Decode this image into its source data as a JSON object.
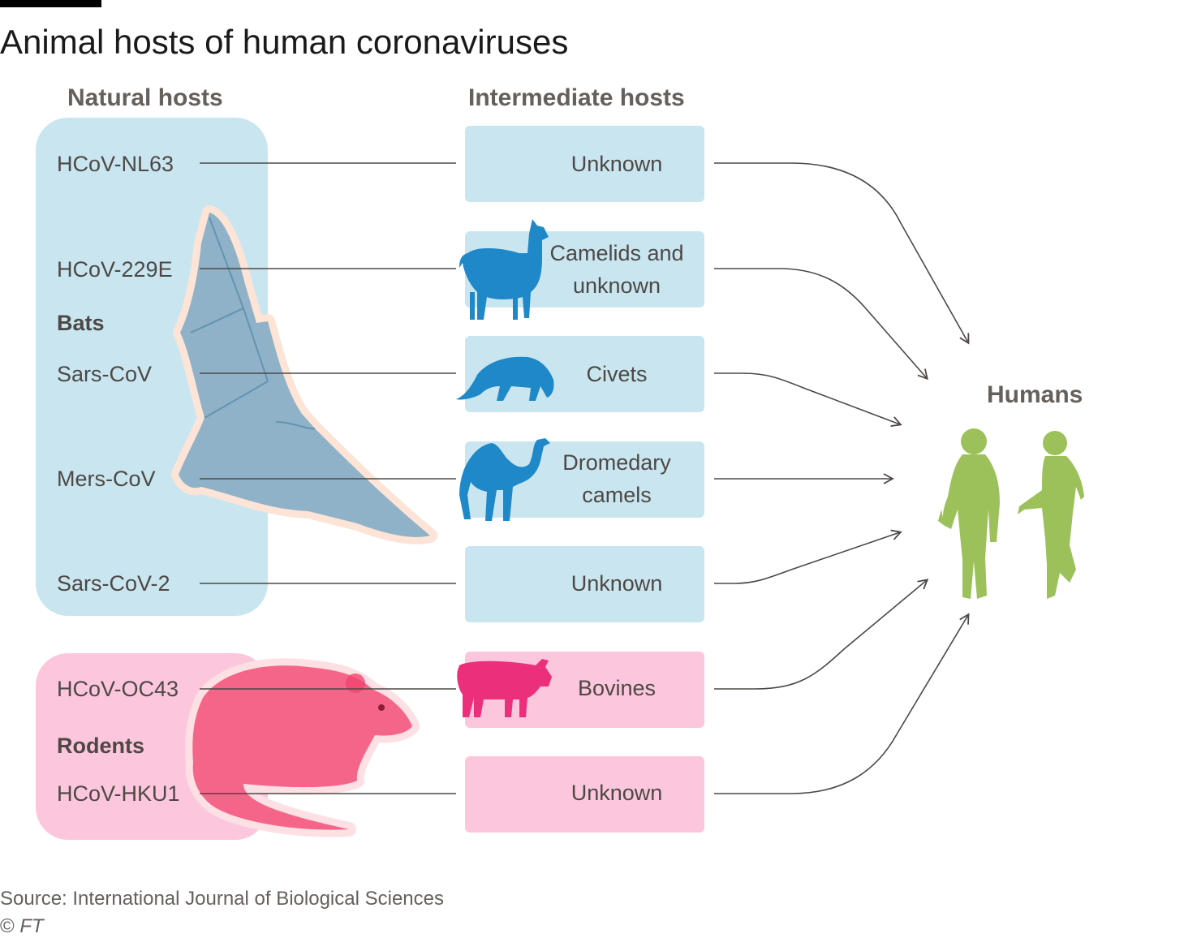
{
  "title": "Animal hosts of human coronaviruses",
  "columns": {
    "natural": "Natural hosts",
    "intermediate": "Intermediate hosts",
    "target": "Humans"
  },
  "groups": [
    {
      "label": "Bats",
      "color": "#c9e6f0",
      "icon": "bat-icon"
    },
    {
      "label": "Rodents",
      "color": "#fcc7dc",
      "icon": "rat-icon"
    }
  ],
  "rows": [
    {
      "virus": "HCoV-NL63",
      "intermediate": "Unknown",
      "group": "Bats",
      "icon": ""
    },
    {
      "virus": "HCoV-229E",
      "intermediate": "Camelids and\nunknown",
      "group": "Bats",
      "icon": "llama-icon"
    },
    {
      "virus": "Sars-CoV",
      "intermediate": "Civets",
      "group": "Bats",
      "icon": "civet-icon"
    },
    {
      "virus": "Mers-CoV",
      "intermediate": "Dromedary\ncamels",
      "group": "Bats",
      "icon": "camel-icon"
    },
    {
      "virus": "Sars-CoV-2",
      "intermediate": "Unknown",
      "group": "Bats",
      "icon": ""
    },
    {
      "virus": "HCoV-OC43",
      "intermediate": "Bovines",
      "group": "Rodents",
      "icon": "cow-icon"
    },
    {
      "virus": "HCoV-HKU1",
      "intermediate": "Unknown",
      "group": "Rodents",
      "icon": ""
    }
  ],
  "colors": {
    "bat_group": "#c9e6f0",
    "rodent_group": "#fcc7dc",
    "bat_animal": "#6fa4c4",
    "blue_icons": "#1f88c9",
    "pink_icons": "#eb2f7a",
    "humans": "#9cc15a",
    "lines": "#4d4845"
  },
  "footer": {
    "source": "Source: International Journal of Biological Sciences",
    "copyright_symbol": "©",
    "copyright_org": "FT"
  }
}
